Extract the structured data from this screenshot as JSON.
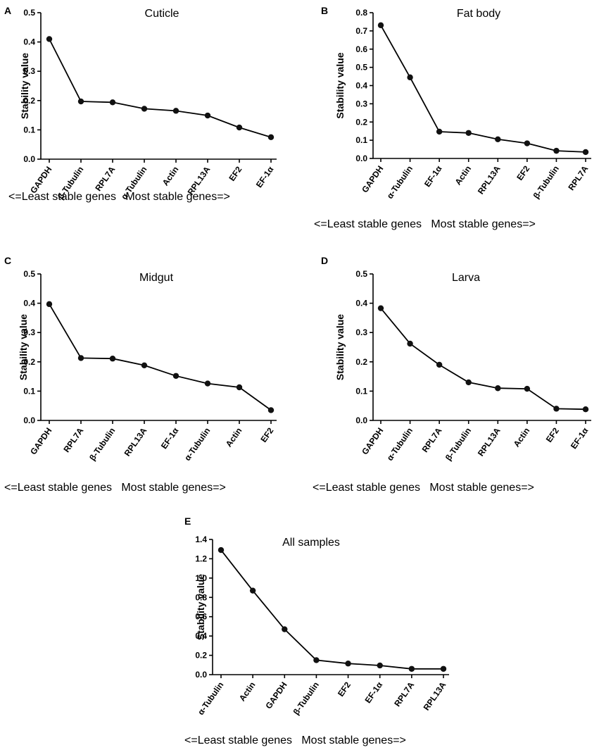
{
  "chart_data": [
    {
      "type": "line",
      "panel": "A",
      "title": "Cuticle",
      "ylabel": "Stability value",
      "xlabel": "<=Least stable genes   Most stable genes=>",
      "ylim": [
        0,
        0.5
      ],
      "yticks": [
        "0.0",
        "0.1",
        "0.2",
        "0.3",
        "0.4",
        "0.5"
      ],
      "categories": [
        "GAPDH",
        "β-Tubulin",
        "RPL7A",
        "α-Tubulin",
        "Actin",
        "RPL13A",
        "EF2",
        "EF-1α"
      ],
      "values": [
        0.41,
        0.197,
        0.194,
        0.172,
        0.165,
        0.149,
        0.108,
        0.075
      ]
    },
    {
      "type": "line",
      "panel": "B",
      "title": "Fat body",
      "ylabel": "Stability value",
      "xlabel": "<=Least stable genes   Most stable genes=>",
      "ylim": [
        0,
        0.8
      ],
      "yticks": [
        "0.0",
        "0.1",
        "0.2",
        "0.3",
        "0.4",
        "0.5",
        "0.6",
        "0.7",
        "0.8"
      ],
      "categories": [
        "GAPDH",
        "α-Tubulin",
        "EF-1α",
        "Actin",
        "RPL13A",
        "EF2",
        "β-Tubulin",
        "RPL7A"
      ],
      "values": [
        0.731,
        0.445,
        0.147,
        0.14,
        0.105,
        0.083,
        0.042,
        0.035
      ]
    },
    {
      "type": "line",
      "panel": "C",
      "title": "Midgut",
      "ylabel": "Stability value",
      "xlabel": "<=Least stable genes   Most stable genes=>",
      "ylim": [
        0,
        0.5
      ],
      "yticks": [
        "0.0",
        "0.1",
        "0.2",
        "0.3",
        "0.4",
        "0.5"
      ],
      "categories": [
        "GAPDH",
        "RPL7A",
        "β-Tubulin",
        "RPL13A",
        "EF-1α",
        "α-Tubulin",
        "Actin",
        "EF2"
      ],
      "values": [
        0.397,
        0.213,
        0.211,
        0.188,
        0.152,
        0.126,
        0.113,
        0.035
      ]
    },
    {
      "type": "line",
      "panel": "D",
      "title": "Larva",
      "ylabel": "Stability value",
      "xlabel": "<=Least stable genes   Most stable genes=>",
      "ylim": [
        0,
        0.5
      ],
      "yticks": [
        "0.0",
        "0.1",
        "0.2",
        "0.3",
        "0.4",
        "0.5"
      ],
      "categories": [
        "GAPDH",
        "α-Tubulin",
        "RPL7A",
        "β-Tubulin",
        "RPL13A",
        "Actin",
        "EF2",
        "EF-1α"
      ],
      "values": [
        0.383,
        0.262,
        0.19,
        0.13,
        0.11,
        0.108,
        0.04,
        0.038
      ]
    },
    {
      "type": "line",
      "panel": "E",
      "title": "All samples",
      "ylabel": "Stability value",
      "xlabel": "<=Least stable genes   Most stable genes=>",
      "ylim": [
        0,
        1.4
      ],
      "yticks": [
        "0.0",
        "0.2",
        "0.4",
        "0.6",
        "0.8",
        "1.0",
        "1.2",
        "1.4"
      ],
      "categories": [
        "α-Tubulin",
        "Actin",
        "GAPDH",
        "β-Tubulin",
        "EF2",
        "EF-1α",
        "RPL7A",
        "RPL13A"
      ],
      "values": [
        1.29,
        0.87,
        0.47,
        0.15,
        0.115,
        0.095,
        0.06,
        0.06
      ]
    }
  ]
}
